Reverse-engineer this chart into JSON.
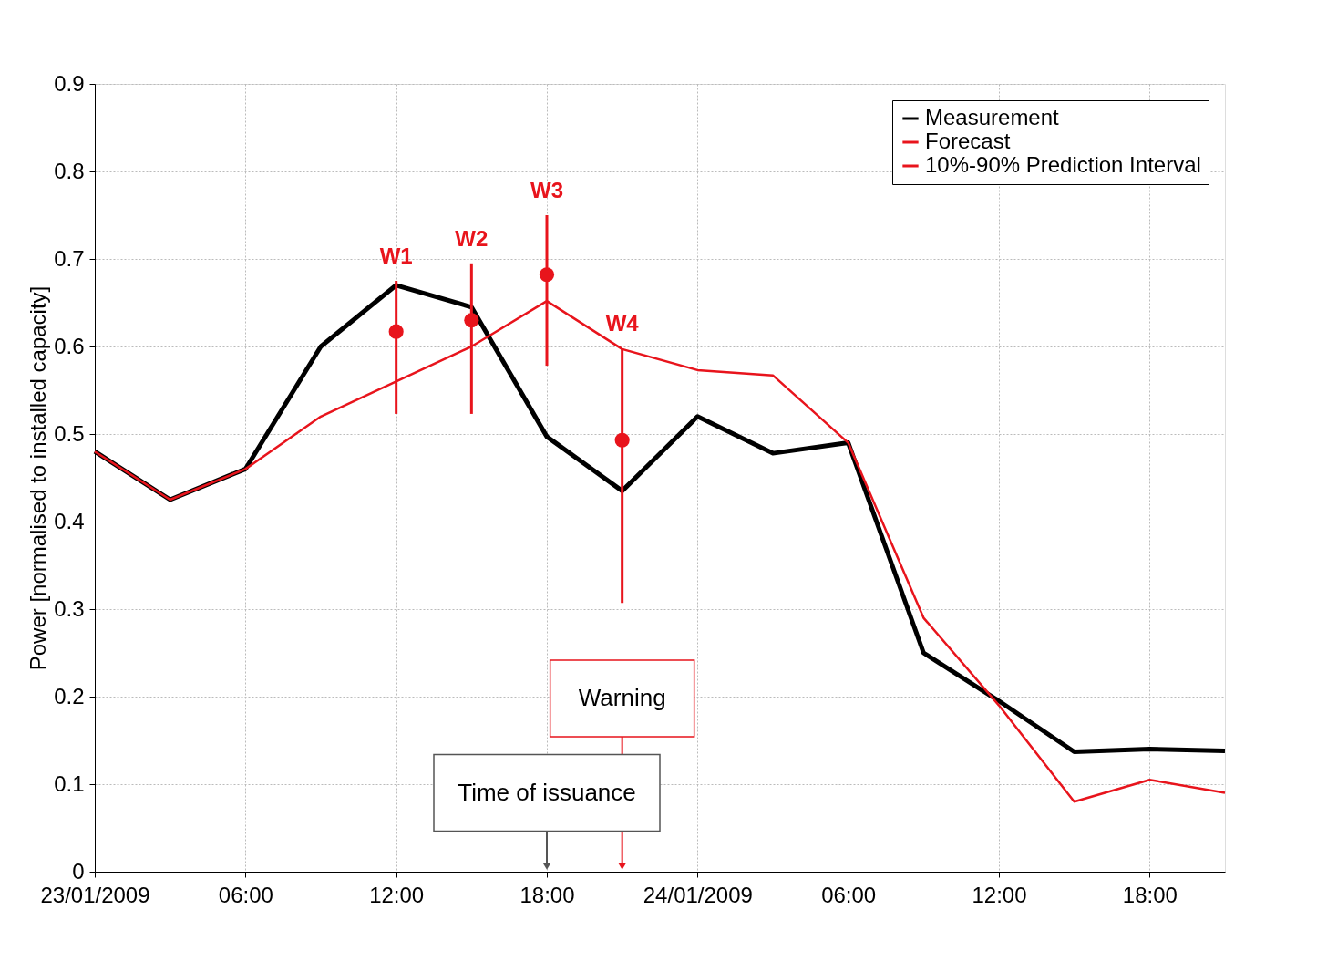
{
  "chart_data": {
    "type": "line",
    "ylabel": "Power [normalised to installed capacity]",
    "x": [
      "2009-01-23T00:00",
      "2009-01-23T03:00",
      "2009-01-23T06:00",
      "2009-01-23T09:00",
      "2009-01-23T12:00",
      "2009-01-23T15:00",
      "2009-01-23T18:00",
      "2009-01-23T21:00",
      "2009-01-24T00:00",
      "2009-01-24T03:00",
      "2009-01-24T06:00",
      "2009-01-24T09:00",
      "2009-01-24T12:00",
      "2009-01-24T15:00",
      "2009-01-24T18:00",
      "2009-01-24T21:00"
    ],
    "series": [
      {
        "name": "Measurement",
        "color": "#000000",
        "values": [
          0.48,
          0.425,
          0.46,
          0.6,
          0.67,
          0.645,
          0.497,
          0.435,
          0.52,
          0.478,
          0.49,
          0.25,
          0.195,
          0.137,
          0.14,
          0.138
        ]
      },
      {
        "name": "Forecast",
        "color": "#e8141c",
        "values": [
          0.48,
          0.425,
          0.46,
          0.52,
          0.56,
          0.6,
          0.652,
          0.597,
          0.573,
          0.567,
          0.49,
          0.29,
          0.19,
          0.08,
          0.105,
          0.09
        ]
      },
      {
        "name": "10%-90% Prediction Interval",
        "type": "scatter",
        "marker": "circle",
        "color": "#e8141c",
        "x": [
          "2009-01-23T12:00",
          "2009-01-23T15:00",
          "2009-01-23T18:00",
          "2009-01-23T21:00"
        ],
        "values": [
          0.617,
          0.63,
          0.682,
          0.493
        ],
        "errors": [
          [
            0.523,
            0.675
          ],
          [
            0.523,
            0.695
          ],
          [
            0.578,
            0.75
          ],
          [
            0.307,
            0.598
          ]
        ]
      }
    ],
    "xlim": [
      "2009-01-23T00:00",
      "2009-01-24T21:00"
    ],
    "xticks": [
      {
        "value": "2009-01-23T00:00",
        "label": "23/01/2009"
      },
      {
        "value": "2009-01-23T06:00",
        "label": "06:00"
      },
      {
        "value": "2009-01-23T12:00",
        "label": "12:00"
      },
      {
        "value": "2009-01-23T18:00",
        "label": "18:00"
      },
      {
        "value": "2009-01-24T00:00",
        "label": "24/01/2009"
      },
      {
        "value": "2009-01-24T06:00",
        "label": "06:00"
      },
      {
        "value": "2009-01-24T12:00",
        "label": "12:00"
      },
      {
        "value": "2009-01-24T18:00",
        "label": "18:00"
      }
    ],
    "ylim": [
      0,
      0.9
    ],
    "yticks": [
      0,
      0.1,
      0.2,
      0.3,
      0.4,
      0.5,
      0.6,
      0.7,
      0.8,
      0.9
    ],
    "annotations": [
      "W1",
      "W2",
      "W3",
      "W4",
      "Warning",
      "Time of issuance"
    ],
    "grid": true,
    "legend": "top right",
    "marker": "none",
    "line_style": "solid"
  }
}
